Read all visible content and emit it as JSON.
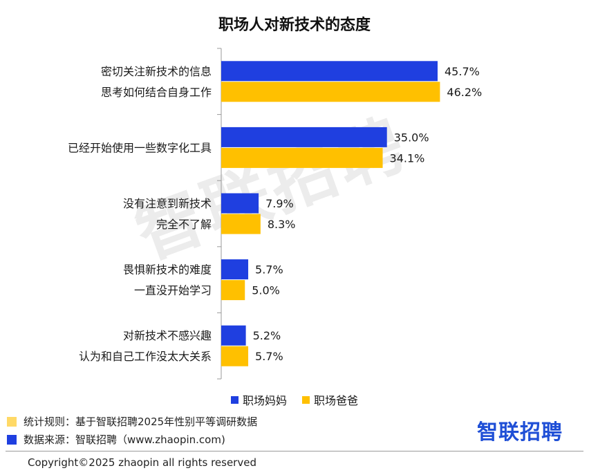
{
  "chart_data": {
    "type": "bar",
    "orientation": "horizontal",
    "title": "职场人对新技术的态度",
    "groups": [
      {
        "labels": [
          "密切关注新技术的信息",
          "思考如何结合自身工作"
        ],
        "values": [
          45.7,
          46.2
        ],
        "value_labels": [
          "45.7%",
          "46.2%"
        ]
      },
      {
        "labels": [
          "已经开始使用一些数字化工具"
        ],
        "values": [
          35.0,
          34.1
        ],
        "value_labels": [
          "35.0%",
          "34.1%"
        ]
      },
      {
        "labels": [
          "没有注意到新技术",
          "完全不了解"
        ],
        "values": [
          7.9,
          8.3
        ],
        "value_labels": [
          "7.9%",
          "8.3%"
        ]
      },
      {
        "labels": [
          "畏惧新技术的难度",
          "一直没开始学习"
        ],
        "values": [
          5.7,
          5.0
        ],
        "value_labels": [
          "5.7%",
          "5.0%"
        ]
      },
      {
        "labels": [
          "对新技术不感兴趣",
          "认为和自己工作没太大关系"
        ],
        "values": [
          5.2,
          5.7
        ],
        "value_labels": [
          "5.2%",
          "5.7%"
        ]
      }
    ],
    "series": [
      {
        "name": "职场妈妈",
        "color": "#1f3fe0"
      },
      {
        "name": "职场爸爸",
        "color": "#ffc000"
      }
    ],
    "xlim": [
      0,
      50
    ],
    "legend_position": "bottom",
    "grid": false
  },
  "watermark": "智联招聘",
  "footnotes": [
    {
      "text": "统计规则：基于智联招聘2025年性别平等调研数据",
      "color": "#ffd966"
    },
    {
      "text": "数据来源：智联招聘（www.zhaopin.com)",
      "color": "#1f3fe0"
    }
  ],
  "brand": "智联招聘",
  "copyright": "Copyright©2025 zhaopin all rights reserved"
}
